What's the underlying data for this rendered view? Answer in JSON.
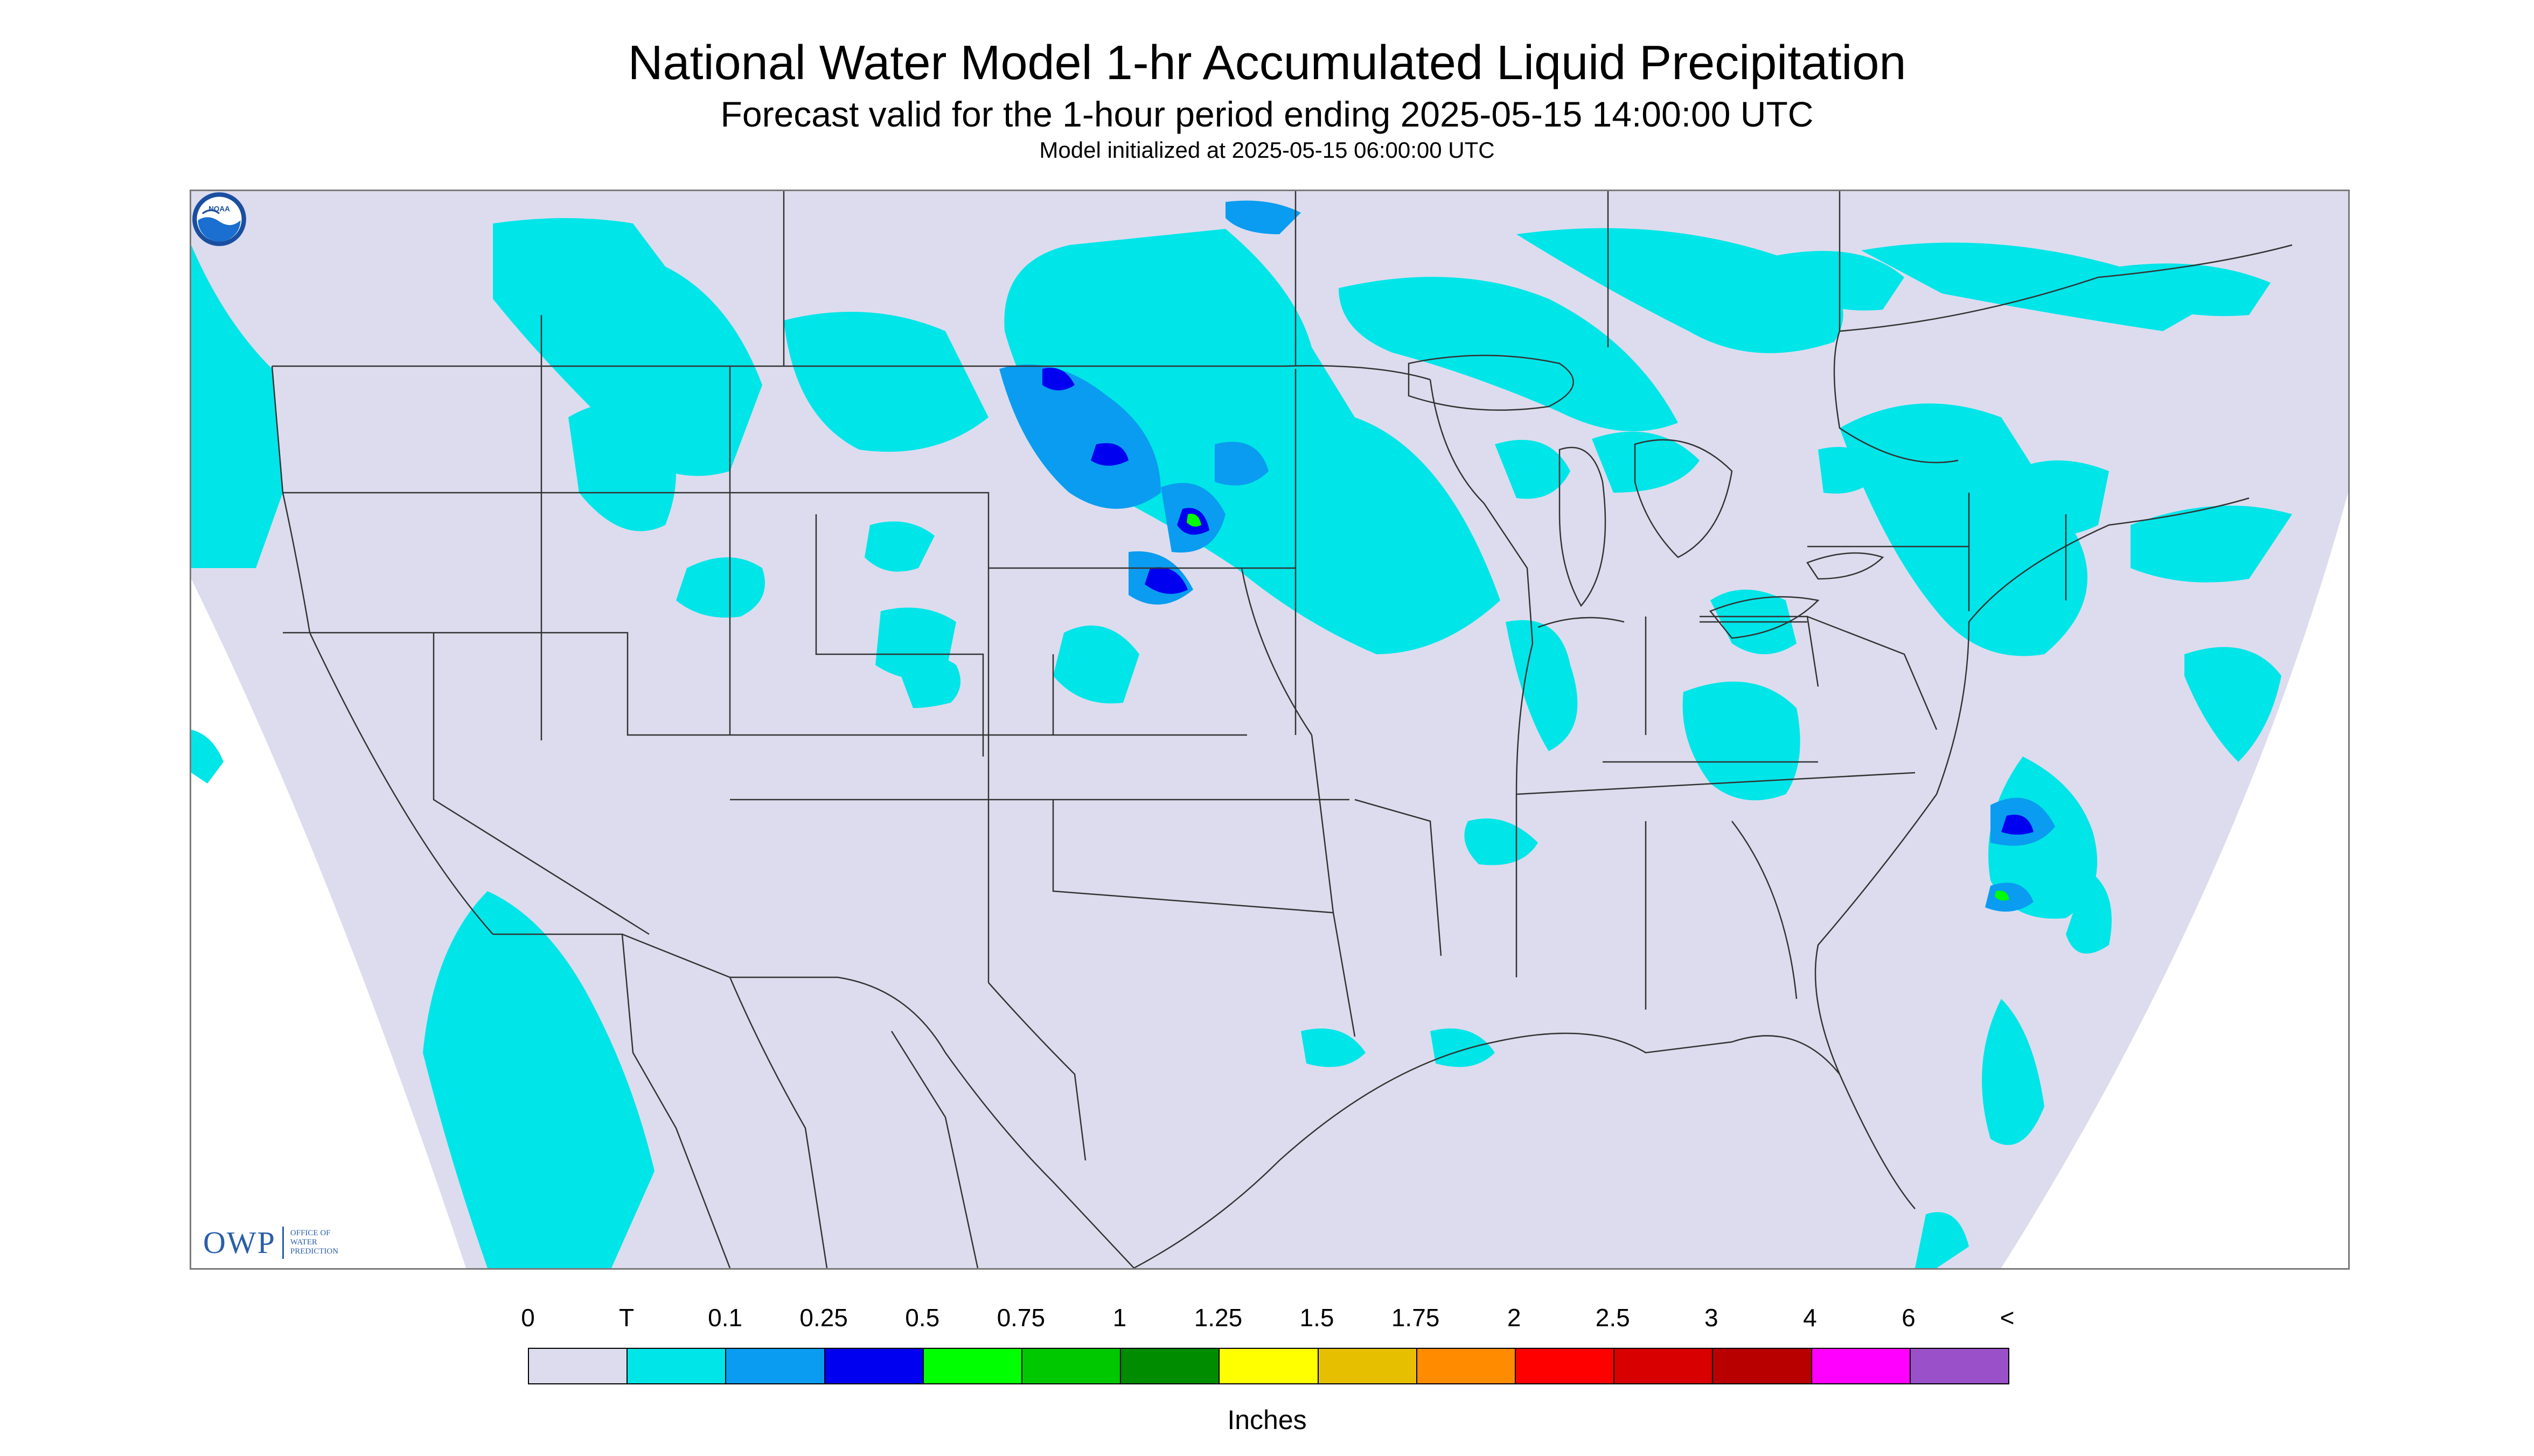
{
  "header": {
    "title": "National Water Model 1-hr Accumulated Liquid Precipitation",
    "subtitle": "Forecast valid for the 1-hour period ending 2025-05-15 14:00:00 UTC",
    "init": "Model initialized at 2025-05-15 06:00:00 UTC"
  },
  "logos": {
    "owp_text": "OWP",
    "owp_sub_1": "OFFICE OF",
    "owp_sub_2": "WATER",
    "owp_sub_3": "PREDICTION",
    "noaa_text": "NOAA"
  },
  "legend": {
    "ticks": [
      "0",
      "T",
      "0.1",
      "0.25",
      "0.5",
      "0.75",
      "1",
      "1.25",
      "1.5",
      "1.75",
      "2",
      "2.5",
      "3",
      "4",
      "6",
      "<"
    ],
    "colors": [
      "#dcdcee",
      "#00e5e8",
      "#0a9cf0",
      "#0000f0",
      "#00ff00",
      "#00c800",
      "#008c00",
      "#ffff00",
      "#e6c000",
      "#ff8c00",
      "#ff0000",
      "#d80000",
      "#b80000",
      "#ff00ff",
      "#9950c8"
    ],
    "units": "Inches"
  },
  "colors": {
    "domain_fill": "#dcdcee",
    "trace": "#00e5e8",
    "light_blue": "#0a9cf0",
    "dark_blue": "#0000f0",
    "green": "#00ff00",
    "borders": "#333333"
  }
}
